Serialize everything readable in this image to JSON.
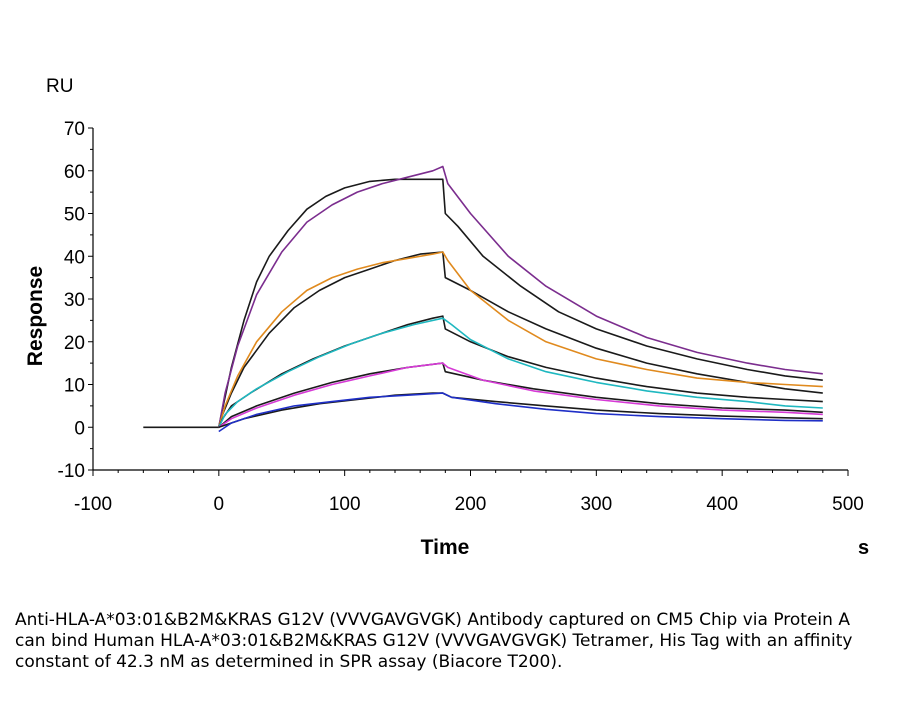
{
  "chart_data": {
    "type": "line",
    "title": "",
    "xlabel": "Time",
    "ylabel": "Response",
    "x_unit": "s",
    "y_unit": "RU",
    "xlim": [
      -100,
      500
    ],
    "ylim": [
      -10,
      70
    ],
    "x_ticks": [
      -100,
      0,
      100,
      200,
      300,
      400,
      500
    ],
    "y_ticks": [
      -10,
      0,
      10,
      20,
      30,
      40,
      50,
      60,
      70
    ],
    "grid": false,
    "legend": "none",
    "series": [
      {
        "color": "#1a1a1a",
        "points": [
          [
            -60,
            0
          ],
          [
            0,
            0
          ],
          [
            2,
            3
          ],
          [
            10,
            14
          ],
          [
            20,
            25
          ],
          [
            30,
            34
          ],
          [
            40,
            40
          ],
          [
            55,
            46
          ],
          [
            70,
            51
          ],
          [
            85,
            54
          ],
          [
            100,
            56
          ],
          [
            120,
            57.5
          ],
          [
            140,
            58
          ],
          [
            160,
            58
          ],
          [
            178,
            58
          ],
          [
            180,
            50
          ],
          [
            190,
            47
          ],
          [
            210,
            40
          ],
          [
            240,
            33
          ],
          [
            270,
            27
          ],
          [
            300,
            23
          ],
          [
            340,
            19
          ],
          [
            380,
            16
          ],
          [
            420,
            13.5
          ],
          [
            450,
            12
          ],
          [
            480,
            11
          ]
        ]
      },
      {
        "color": "#7b2d8e",
        "points": [
          [
            0,
            0
          ],
          [
            5,
            8
          ],
          [
            15,
            19
          ],
          [
            30,
            31
          ],
          [
            50,
            41
          ],
          [
            70,
            48
          ],
          [
            90,
            52
          ],
          [
            110,
            55
          ],
          [
            130,
            57
          ],
          [
            150,
            58.5
          ],
          [
            170,
            60
          ],
          [
            178,
            61
          ],
          [
            182,
            57
          ],
          [
            200,
            50
          ],
          [
            230,
            40
          ],
          [
            260,
            33
          ],
          [
            300,
            26
          ],
          [
            340,
            21
          ],
          [
            380,
            17.5
          ],
          [
            420,
            15
          ],
          [
            450,
            13.5
          ],
          [
            480,
            12.5
          ]
        ]
      },
      {
        "color": "#1a1a1a",
        "points": [
          [
            0,
            0
          ],
          [
            3,
            3
          ],
          [
            10,
            8
          ],
          [
            20,
            14
          ],
          [
            40,
            22
          ],
          [
            60,
            28
          ],
          [
            80,
            32
          ],
          [
            100,
            35
          ],
          [
            120,
            37
          ],
          [
            140,
            39
          ],
          [
            160,
            40.5
          ],
          [
            178,
            41
          ],
          [
            180,
            35
          ],
          [
            200,
            32
          ],
          [
            230,
            27
          ],
          [
            260,
            23
          ],
          [
            300,
            18.5
          ],
          [
            340,
            15
          ],
          [
            380,
            12.5
          ],
          [
            420,
            10.5
          ],
          [
            450,
            9
          ],
          [
            480,
            8
          ]
        ]
      },
      {
        "color": "#e08a1e",
        "points": [
          [
            0,
            0
          ],
          [
            5,
            5
          ],
          [
            15,
            12
          ],
          [
            30,
            20
          ],
          [
            50,
            27
          ],
          [
            70,
            32
          ],
          [
            90,
            35
          ],
          [
            110,
            37
          ],
          [
            130,
            38.5
          ],
          [
            150,
            39.5
          ],
          [
            170,
            40.5
          ],
          [
            178,
            41
          ],
          [
            182,
            39
          ],
          [
            200,
            32
          ],
          [
            230,
            25
          ],
          [
            260,
            20
          ],
          [
            300,
            16
          ],
          [
            340,
            13.5
          ],
          [
            380,
            11.5
          ],
          [
            420,
            10.5
          ],
          [
            450,
            10
          ],
          [
            480,
            9.5
          ]
        ]
      },
      {
        "color": "#1a1a1a",
        "points": [
          [
            0,
            0
          ],
          [
            3,
            2
          ],
          [
            10,
            5
          ],
          [
            25,
            8
          ],
          [
            50,
            12.5
          ],
          [
            75,
            16
          ],
          [
            100,
            19
          ],
          [
            125,
            21.5
          ],
          [
            150,
            24
          ],
          [
            170,
            25.5
          ],
          [
            178,
            26
          ],
          [
            180,
            23
          ],
          [
            200,
            20
          ],
          [
            230,
            16.5
          ],
          [
            260,
            14
          ],
          [
            300,
            11.5
          ],
          [
            340,
            9.5
          ],
          [
            380,
            8
          ],
          [
            420,
            7
          ],
          [
            450,
            6.5
          ],
          [
            480,
            6
          ]
        ]
      },
      {
        "color": "#1fb8c0",
        "points": [
          [
            0,
            0
          ],
          [
            5,
            3
          ],
          [
            15,
            6
          ],
          [
            30,
            9
          ],
          [
            55,
            13
          ],
          [
            80,
            16.5
          ],
          [
            105,
            19.5
          ],
          [
            130,
            22
          ],
          [
            155,
            24
          ],
          [
            178,
            25.5
          ],
          [
            185,
            24
          ],
          [
            200,
            20.5
          ],
          [
            230,
            16
          ],
          [
            260,
            13
          ],
          [
            300,
            10.5
          ],
          [
            340,
            8.5
          ],
          [
            380,
            7
          ],
          [
            420,
            6
          ],
          [
            450,
            5
          ],
          [
            480,
            4.5
          ]
        ]
      },
      {
        "color": "#1a1a1a",
        "points": [
          [
            0,
            0
          ],
          [
            10,
            2.5
          ],
          [
            30,
            5
          ],
          [
            60,
            8
          ],
          [
            90,
            10.5
          ],
          [
            120,
            12.5
          ],
          [
            150,
            14
          ],
          [
            178,
            15
          ],
          [
            180,
            13
          ],
          [
            210,
            11
          ],
          [
            250,
            9
          ],
          [
            300,
            7
          ],
          [
            350,
            5.5
          ],
          [
            400,
            4.5
          ],
          [
            450,
            4
          ],
          [
            480,
            3.5
          ]
        ]
      },
      {
        "color": "#d63ad6",
        "points": [
          [
            0,
            0
          ],
          [
            10,
            2
          ],
          [
            30,
            4.5
          ],
          [
            60,
            7.5
          ],
          [
            90,
            10
          ],
          [
            120,
            12
          ],
          [
            150,
            14
          ],
          [
            178,
            15
          ],
          [
            182,
            14
          ],
          [
            210,
            11
          ],
          [
            250,
            8.5
          ],
          [
            300,
            6.5
          ],
          [
            350,
            5
          ],
          [
            400,
            4
          ],
          [
            450,
            3.5
          ],
          [
            480,
            3
          ]
        ]
      },
      {
        "color": "#1a1a1a",
        "points": [
          [
            0,
            0
          ],
          [
            20,
            2
          ],
          [
            50,
            4
          ],
          [
            80,
            5.5
          ],
          [
            110,
            6.5
          ],
          [
            140,
            7.5
          ],
          [
            170,
            8
          ],
          [
            178,
            8
          ],
          [
            185,
            7
          ],
          [
            220,
            6
          ],
          [
            260,
            5
          ],
          [
            300,
            4
          ],
          [
            350,
            3.2
          ],
          [
            400,
            2.6
          ],
          [
            450,
            2.2
          ],
          [
            480,
            2
          ]
        ]
      },
      {
        "color": "#1f2fc7",
        "points": [
          [
            0,
            -1
          ],
          [
            10,
            1
          ],
          [
            30,
            3
          ],
          [
            60,
            5
          ],
          [
            90,
            6
          ],
          [
            120,
            7
          ],
          [
            150,
            7.5
          ],
          [
            178,
            8
          ],
          [
            185,
            7
          ],
          [
            220,
            5.5
          ],
          [
            260,
            4.2
          ],
          [
            300,
            3.2
          ],
          [
            350,
            2.5
          ],
          [
            400,
            2
          ],
          [
            450,
            1.6
          ],
          [
            480,
            1.5
          ]
        ]
      }
    ]
  },
  "caption": "Anti-HLA-A*03:01&B2M&KRAS G12V (VVVGAVGVGK) Antibody captured on CM5 Chip via Protein A can bind Human HLA-A*03:01&B2M&KRAS G12V (VVVGAVGVGK) Tetramer, His Tag with an affinity constant of 42.3 nM as determined in SPR assay (Biacore T200)."
}
